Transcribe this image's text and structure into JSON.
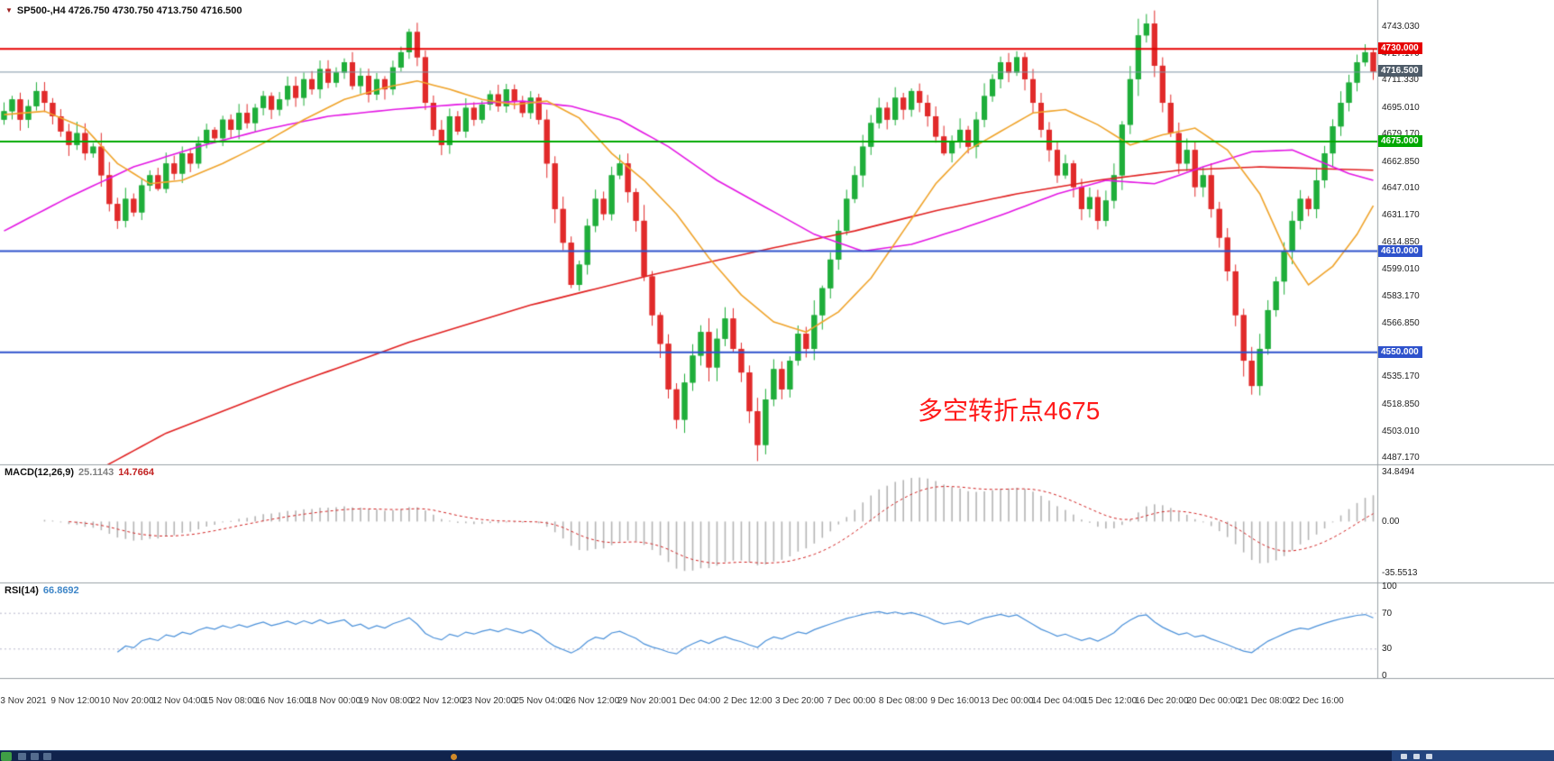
{
  "header": {
    "symbol_info": "SP500-,H4 4726.750 4730.750 4713.750 4716.500",
    "symbol": "SP500-",
    "timeframe": "H4"
  },
  "taskbar": {
    "background": "#10234c",
    "accent": "#3f9e46"
  },
  "chart_data": [
    {
      "type": "candlestick",
      "title": "SP500- H4 candlestick chart",
      "symbol": "SP500-",
      "timeframe": "H4",
      "last_ohlc": {
        "open": 4726.75,
        "high": 4730.75,
        "low": 4713.75,
        "close": 4716.5
      },
      "up_color": "#1fae3a",
      "down_color": "#e12b2b",
      "y_axis": {
        "price_at_top": 4759.0,
        "price_at_bottom": 4483.5,
        "ticks": [
          "4743.030",
          "4727.170",
          "4711.330",
          "4695.010",
          "4679.170",
          "4662.850",
          "4647.010",
          "4631.170",
          "4614.850",
          "4599.010",
          "4583.170",
          "4566.850",
          "4551.010",
          "4535.170",
          "4518.850",
          "4503.010",
          "4487.170"
        ]
      },
      "x_axis": {
        "labels": [
          "3 Nov 2021",
          "9 Nov 12:00",
          "10 Nov 20:00",
          "12 Nov 04:00",
          "15 Nov 08:00",
          "16 Nov 16:00",
          "18 Nov 00:00",
          "19 Nov 08:00",
          "22 Nov 12:00",
          "23 Nov 20:00",
          "25 Nov 04:00",
          "26 Nov 12:00",
          "29 Nov 20:00",
          "1 Dec 04:00",
          "2 Dec 12:00",
          "3 Dec 20:00",
          "7 Dec 00:00",
          "8 Dec 08:00",
          "9 Dec 16:00",
          "13 Dec 00:00",
          "14 Dec 04:00",
          "15 Dec 12:00",
          "16 Dec 20:00",
          "20 Dec 00:00",
          "21 Dec 08:00",
          "22 Dec 16:00"
        ]
      },
      "first_open": 4688,
      "close": [
        4693,
        4700,
        4688,
        4696,
        4705,
        4698,
        4690,
        4681,
        4673,
        4680,
        4668,
        4672,
        4655,
        4638,
        4628,
        4641,
        4633,
        4649,
        4655,
        4647,
        4662,
        4656,
        4668,
        4662,
        4674,
        4682,
        4677,
        4688,
        4682,
        4692,
        4686,
        4695,
        4702,
        4694,
        4700,
        4708,
        4701,
        4712,
        4706,
        4718,
        4710,
        4716,
        4722,
        4708,
        4714,
        4703,
        4712,
        4706,
        4719,
        4728,
        4740,
        4725,
        4698,
        4682,
        4673,
        4690,
        4681,
        4695,
        4688,
        4697,
        4703,
        4696,
        4706,
        4699,
        4692,
        4701,
        4688,
        4662,
        4635,
        4615,
        4590,
        4602,
        4625,
        4641,
        4632,
        4655,
        4662,
        4645,
        4628,
        4595,
        4572,
        4555,
        4528,
        4510,
        4532,
        4548,
        4562,
        4541,
        4558,
        4570,
        4552,
        4538,
        4515,
        4495,
        4522,
        4540,
        4528,
        4545,
        4561,
        4552,
        4572,
        4588,
        4605,
        4622,
        4641,
        4655,
        4672,
        4686,
        4695,
        4688,
        4701,
        4694,
        4705,
        4698,
        4690,
        4678,
        4668,
        4675,
        4682,
        4672,
        4688,
        4702,
        4712,
        4722,
        4716,
        4725,
        4712,
        4698,
        4682,
        4670,
        4655,
        4662,
        4648,
        4635,
        4642,
        4628,
        4640,
        4655,
        4685,
        4712,
        4738,
        4745,
        4720,
        4698,
        4680,
        4662,
        4670,
        4648,
        4655,
        4635,
        4618,
        4598,
        4572,
        4545,
        4530,
        4552,
        4575,
        4592,
        4610,
        4628,
        4641,
        4635,
        4652,
        4668,
        4684,
        4698,
        4710,
        4722,
        4728,
        4716.5
      ],
      "horizontal_lines": [
        {
          "price": 4730,
          "label": "4730.000",
          "color": "#e60000",
          "width": 2
        },
        {
          "price": 4675,
          "label": "4675.000",
          "color": "#00a800",
          "width": 2
        },
        {
          "price": 4610,
          "label": "4610.000",
          "color": "#2e52cc",
          "width": 2
        },
        {
          "price": 4550,
          "label": "4550.000",
          "color": "#2e52cc",
          "width": 2
        }
      ],
      "current_price": {
        "value": 4716.5,
        "label": "4716.500",
        "badge_color": "#4e5b68",
        "line_color": "#7d95a5"
      },
      "moving_averages": [
        {
          "name": "ma-long-red",
          "color": "#e02020",
          "anchors": [
            [
              0,
              4440
            ],
            [
              10,
              4476
            ],
            [
              20,
              4502
            ],
            [
              35,
              4530
            ],
            [
              50,
              4556
            ],
            [
              65,
              4578
            ],
            [
              80,
              4596
            ],
            [
              95,
              4612
            ],
            [
              105,
              4622
            ],
            [
              115,
              4634
            ],
            [
              125,
              4644
            ],
            [
              135,
              4652
            ],
            [
              145,
              4658
            ],
            [
              155,
              4660
            ],
            [
              162,
              4659
            ],
            [
              169,
              4658
            ]
          ]
        },
        {
          "name": "ma-medium-magenta",
          "color": "#e316e3",
          "anchors": [
            [
              0,
              4622
            ],
            [
              8,
              4642
            ],
            [
              16,
              4660
            ],
            [
              24,
              4672
            ],
            [
              32,
              4682
            ],
            [
              40,
              4690
            ],
            [
              48,
              4694
            ],
            [
              56,
              4697
            ],
            [
              64,
              4699
            ],
            [
              70,
              4696
            ],
            [
              76,
              4688
            ],
            [
              82,
              4672
            ],
            [
              88,
              4652
            ],
            [
              94,
              4636
            ],
            [
              100,
              4620
            ],
            [
              106,
              4610
            ],
            [
              112,
              4614
            ],
            [
              118,
              4623
            ],
            [
              124,
              4633
            ],
            [
              130,
              4644
            ],
            [
              136,
              4652
            ],
            [
              142,
              4650
            ],
            [
              148,
              4660
            ],
            [
              154,
              4669
            ],
            [
              159,
              4670
            ],
            [
              163,
              4662
            ],
            [
              166,
              4656
            ],
            [
              169,
              4652
            ]
          ]
        },
        {
          "name": "ma-short-orange",
          "color": "#efa32a",
          "anchors": [
            [
              0,
              4691
            ],
            [
              5,
              4693
            ],
            [
              10,
              4683
            ],
            [
              14,
              4662
            ],
            [
              18,
              4650
            ],
            [
              22,
              4652
            ],
            [
              27,
              4662
            ],
            [
              32,
              4674
            ],
            [
              37,
              4688
            ],
            [
              42,
              4700
            ],
            [
              47,
              4707
            ],
            [
              51,
              4711
            ],
            [
              55,
              4706
            ],
            [
              59,
              4700
            ],
            [
              63,
              4697
            ],
            [
              67,
              4699
            ],
            [
              71,
              4689
            ],
            [
              75,
              4668
            ],
            [
              79,
              4652
            ],
            [
              83,
              4632
            ],
            [
              87,
              4606
            ],
            [
              91,
              4584
            ],
            [
              95,
              4568
            ],
            [
              99,
              4562
            ],
            [
              103,
              4574
            ],
            [
              107,
              4594
            ],
            [
              111,
              4622
            ],
            [
              115,
              4650
            ],
            [
              119,
              4670
            ],
            [
              123,
              4681
            ],
            [
              127,
              4692
            ],
            [
              131,
              4694
            ],
            [
              135,
              4685
            ],
            [
              139,
              4673
            ],
            [
              143,
              4679
            ],
            [
              147,
              4683
            ],
            [
              151,
              4670
            ],
            [
              155,
              4644
            ],
            [
              158,
              4612
            ],
            [
              161,
              4590
            ],
            [
              164,
              4601
            ],
            [
              167,
              4620
            ],
            [
              169,
              4637
            ]
          ]
        }
      ],
      "annotation": {
        "text": "多空转折点4675",
        "color": "#ff1a1a"
      }
    },
    {
      "type": "bar",
      "indicator": "MACD",
      "label": "MACD(12,26,9)",
      "value_main": "25.1143",
      "value_signal": "14.7664",
      "params": [
        12,
        26,
        9
      ],
      "axis_ticks": [
        "34.8494",
        "0.00",
        "-35.5513"
      ],
      "ylim": [
        -40,
        38
      ],
      "histogram_color": "#b4b4b4",
      "signal_color": "#d02020",
      "signal_style": "dashed",
      "derived_from": "close series of chart 0"
    },
    {
      "type": "line",
      "indicator": "RSI",
      "label": "RSI(14)",
      "value": "66.8692",
      "period": 14,
      "axis_ticks": [
        "100",
        "70",
        "30",
        "0"
      ],
      "levels": [
        70,
        30
      ],
      "level_color": "#b8b8cc",
      "ylim": [
        0,
        100
      ],
      "line_color": "#4a90d9",
      "derived_from": "close series of chart 0"
    }
  ]
}
